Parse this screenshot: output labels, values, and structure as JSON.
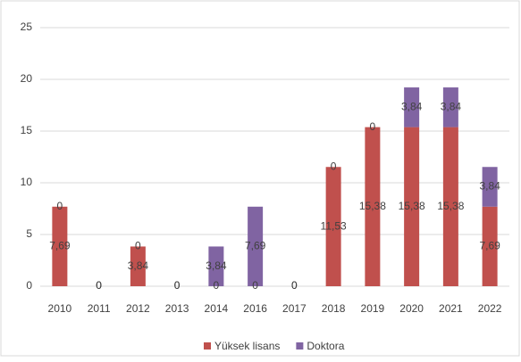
{
  "chart_data": {
    "type": "stacked_bar",
    "categories": [
      "2010",
      "2011",
      "2012",
      "2013",
      "2014",
      "2016",
      "2017",
      "2018",
      "2019",
      "2020",
      "2021",
      "2022"
    ],
    "series": [
      {
        "name": "Yüksek lisans",
        "color": "#c0504d",
        "values": [
          7.69,
          0,
          3.84,
          0,
          0,
          0,
          0,
          11.53,
          15.38,
          15.38,
          15.38,
          7.69
        ],
        "value_labels": [
          "7,69",
          "0",
          "3,84",
          "0",
          "0",
          "0",
          "0",
          "11,53",
          "15,38",
          "15,38",
          "15,38",
          "7,69"
        ]
      },
      {
        "name": "Doktora",
        "color": "#8064a2",
        "values": [
          0,
          0,
          0,
          0,
          3.84,
          7.69,
          0,
          0,
          0,
          3.84,
          3.84,
          3.84
        ],
        "value_labels": [
          "0",
          "0",
          "0",
          "0",
          "3,84",
          "7,69",
          "0",
          "0",
          "0",
          "3,84",
          "3,84",
          "3,84"
        ]
      }
    ],
    "ylim": [
      0,
      25
    ],
    "yticks": [
      0,
      5,
      10,
      15,
      20,
      25
    ],
    "grid": true,
    "legend": "bottom"
  }
}
